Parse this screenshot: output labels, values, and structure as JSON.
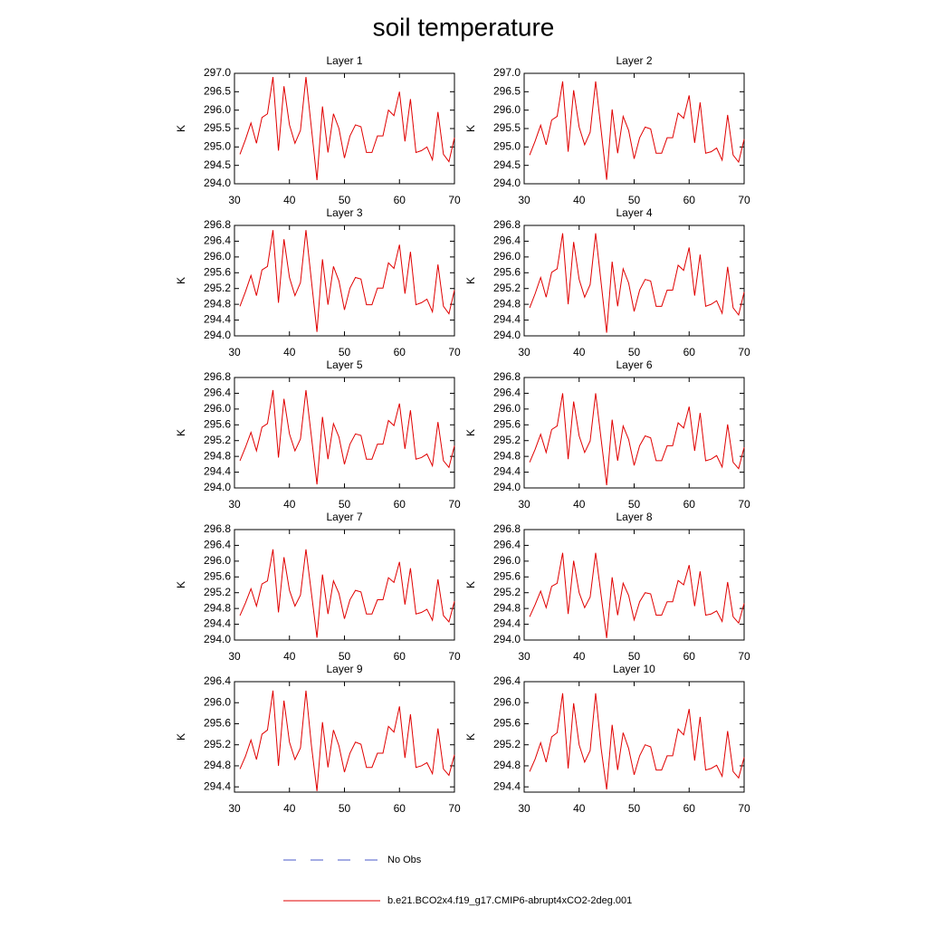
{
  "title": "soil temperature",
  "legend": [
    {
      "name": "No Obs",
      "color": "#4a5ac8",
      "style": "dashed"
    }
  ],
  "chart_data": [
    {
      "type": "line",
      "title": "Layer 1",
      "ylabel": "K",
      "x": [
        31,
        32,
        33,
        34,
        35,
        36,
        37,
        38,
        39,
        40,
        41,
        42,
        43,
        44,
        45,
        46,
        47,
        48,
        49,
        50,
        51,
        52,
        53,
        54,
        55,
        56,
        57,
        58,
        59,
        60,
        61,
        62,
        63,
        64,
        65,
        66,
        67,
        68,
        69,
        70
      ],
      "xlim": [
        30,
        70
      ],
      "xticks": [
        30,
        40,
        50,
        60,
        70
      ],
      "ylim": [
        294,
        297
      ],
      "yticks": [
        {
          "value": 294,
          "label": "294.0"
        },
        294.5,
        {
          "value": 295,
          "label": "295.0"
        },
        295.5,
        {
          "value": 296,
          "label": "296.0"
        },
        296.5,
        {
          "value": 297,
          "label": "297.0"
        }
      ],
      "series": [
        {
          "name": "b.e21.BCO2x4.f19_g17.CMIP6-abrupt4xCO2-2deg.001",
          "color": "#e00000",
          "values": [
            294.8,
            295.2,
            295.65,
            295.1,
            295.8,
            295.9,
            296.9,
            294.9,
            296.65,
            295.6,
            295.1,
            295.45,
            296.9,
            295.5,
            294.1,
            296.1,
            294.85,
            295.9,
            295.5,
            294.7,
            295.3,
            295.6,
            295.55,
            294.85,
            294.85,
            295.3,
            295.3,
            296.0,
            295.85,
            296.5,
            295.15,
            296.3,
            294.85,
            294.9,
            295.0,
            294.65,
            295.95,
            294.8,
            294.6,
            295.25
          ]
        }
      ]
    },
    {
      "type": "line",
      "title": "Layer 2",
      "ylabel": "K",
      "x": [
        31,
        32,
        33,
        34,
        35,
        36,
        37,
        38,
        39,
        40,
        41,
        42,
        43,
        44,
        45,
        46,
        47,
        48,
        49,
        50,
        51,
        52,
        53,
        54,
        55,
        56,
        57,
        58,
        59,
        60,
        61,
        62,
        63,
        64,
        65,
        66,
        67,
        68,
        69,
        70
      ],
      "xlim": [
        30,
        70
      ],
      "xticks": [
        30,
        40,
        50,
        60,
        70
      ],
      "ylim": [
        294,
        297
      ],
      "yticks": [
        {
          "value": 294,
          "label": "294.0"
        },
        294.5,
        {
          "value": 295,
          "label": "295.0"
        },
        295.5,
        {
          "value": 296,
          "label": "296.0"
        },
        296.5,
        {
          "value": 297,
          "label": "297.0"
        }
      ],
      "series": [
        {
          "color": "#e00000",
          "values": [
            294.78,
            295.16,
            295.59,
            295.06,
            295.73,
            295.83,
            296.78,
            294.87,
            296.54,
            295.54,
            295.06,
            295.4,
            296.78,
            295.45,
            294.11,
            296.02,
            294.83,
            295.83,
            295.45,
            294.68,
            295.25,
            295.54,
            295.49,
            294.83,
            294.83,
            295.25,
            295.25,
            295.92,
            295.78,
            296.4,
            295.11,
            296.21,
            294.83,
            294.87,
            294.97,
            294.64,
            295.87,
            294.78,
            294.59,
            295.21
          ]
        }
      ]
    },
    {
      "type": "line",
      "title": "Layer 3",
      "ylabel": "K",
      "x": [
        31,
        32,
        33,
        34,
        35,
        36,
        37,
        38,
        39,
        40,
        41,
        42,
        43,
        44,
        45,
        46,
        47,
        48,
        49,
        50,
        51,
        52,
        53,
        54,
        55,
        56,
        57,
        58,
        59,
        60,
        61,
        62,
        63,
        64,
        65,
        66,
        67,
        68,
        69,
        70
      ],
      "xlim": [
        30,
        70
      ],
      "xticks": [
        30,
        40,
        50,
        60,
        70
      ],
      "ylim": [
        294,
        296.8
      ],
      "yticks": [
        {
          "value": 294,
          "label": "294.0"
        },
        294.4,
        294.8,
        295.2,
        295.6,
        {
          "value": 296,
          "label": "296.0"
        },
        296.4,
        296.8
      ],
      "series": [
        {
          "color": "#e00000",
          "values": [
            294.75,
            295.12,
            295.53,
            295.02,
            295.67,
            295.76,
            296.68,
            294.84,
            296.45,
            295.48,
            295.02,
            295.35,
            296.68,
            295.39,
            294.1,
            295.94,
            294.79,
            295.76,
            295.39,
            294.66,
            295.21,
            295.48,
            295.44,
            294.79,
            294.79,
            295.21,
            295.21,
            295.85,
            295.71,
            296.31,
            295.07,
            296.13,
            294.79,
            294.84,
            294.93,
            294.61,
            295.81,
            294.75,
            294.56,
            295.16
          ]
        }
      ]
    },
    {
      "type": "line",
      "title": "Layer 4",
      "ylabel": "K",
      "x": [
        31,
        32,
        33,
        34,
        35,
        36,
        37,
        38,
        39,
        40,
        41,
        42,
        43,
        44,
        45,
        46,
        47,
        48,
        49,
        50,
        51,
        52,
        53,
        54,
        55,
        56,
        57,
        58,
        59,
        60,
        61,
        62,
        63,
        64,
        65,
        66,
        67,
        68,
        69,
        70
      ],
      "xlim": [
        30,
        70
      ],
      "xticks": [
        30,
        40,
        50,
        60,
        70
      ],
      "ylim": [
        294,
        296.8
      ],
      "yticks": [
        {
          "value": 294,
          "label": "294.0"
        },
        294.4,
        294.8,
        295.2,
        295.6,
        {
          "value": 296,
          "label": "296.0"
        },
        296.4,
        296.8
      ],
      "series": [
        {
          "color": "#e00000",
          "values": [
            294.71,
            295.07,
            295.48,
            294.98,
            295.61,
            295.7,
            296.6,
            294.8,
            296.38,
            295.43,
            294.98,
            295.3,
            296.6,
            295.34,
            294.08,
            295.88,
            294.75,
            295.7,
            295.34,
            294.62,
            295.16,
            295.43,
            295.39,
            294.75,
            294.75,
            295.16,
            295.16,
            295.79,
            295.66,
            296.24,
            295.02,
            296.06,
            294.75,
            294.8,
            294.89,
            294.57,
            295.75,
            294.71,
            294.53,
            295.11
          ]
        }
      ]
    },
    {
      "type": "line",
      "title": "Layer 5",
      "ylabel": "K",
      "x": [
        31,
        32,
        33,
        34,
        35,
        36,
        37,
        38,
        39,
        40,
        41,
        42,
        43,
        44,
        45,
        46,
        47,
        48,
        49,
        50,
        51,
        52,
        53,
        54,
        55,
        56,
        57,
        58,
        59,
        60,
        61,
        62,
        63,
        64,
        65,
        66,
        67,
        68,
        69,
        70
      ],
      "xlim": [
        30,
        70
      ],
      "xticks": [
        30,
        40,
        50,
        60,
        70
      ],
      "ylim": [
        294,
        296.8
      ],
      "yticks": [
        {
          "value": 294,
          "label": "294.0"
        },
        294.4,
        294.8,
        295.2,
        295.6,
        {
          "value": 296,
          "label": "296.0"
        },
        296.4,
        296.8
      ],
      "series": [
        {
          "color": "#e00000",
          "values": [
            294.69,
            295.03,
            295.41,
            294.94,
            295.54,
            295.63,
            296.48,
            294.77,
            296.26,
            295.37,
            294.94,
            295.24,
            296.48,
            295.29,
            294.09,
            295.8,
            294.73,
            295.63,
            295.29,
            294.6,
            295.11,
            295.37,
            295.33,
            294.73,
            294.73,
            295.11,
            295.11,
            295.71,
            295.58,
            296.14,
            294.99,
            295.97,
            294.73,
            294.77,
            294.86,
            294.56,
            295.67,
            294.69,
            294.52,
            295.07
          ]
        }
      ]
    },
    {
      "type": "line",
      "title": "Layer 6",
      "ylabel": "K",
      "x": [
        31,
        32,
        33,
        34,
        35,
        36,
        37,
        38,
        39,
        40,
        41,
        42,
        43,
        44,
        45,
        46,
        47,
        48,
        49,
        50,
        51,
        52,
        53,
        54,
        55,
        56,
        57,
        58,
        59,
        60,
        61,
        62,
        63,
        64,
        65,
        66,
        67,
        68,
        69,
        70
      ],
      "xlim": [
        30,
        70
      ],
      "xticks": [
        30,
        40,
        50,
        60,
        70
      ],
      "ylim": [
        294,
        296.8
      ],
      "yticks": [
        {
          "value": 294,
          "label": "294.0"
        },
        294.4,
        294.8,
        295.2,
        295.6,
        {
          "value": 296,
          "label": "296.0"
        },
        296.4,
        296.8
      ],
      "series": [
        {
          "color": "#e00000",
          "values": [
            294.65,
            294.98,
            295.36,
            294.9,
            295.48,
            295.57,
            296.4,
            294.73,
            296.19,
            295.32,
            294.9,
            295.19,
            296.4,
            295.23,
            294.07,
            295.73,
            294.69,
            295.57,
            295.23,
            294.57,
            295.07,
            295.32,
            295.27,
            294.69,
            294.69,
            295.07,
            295.07,
            295.65,
            295.52,
            296.06,
            294.94,
            295.9,
            294.69,
            294.73,
            294.82,
            294.53,
            295.61,
            294.65,
            294.49,
            295.03
          ]
        }
      ]
    },
    {
      "type": "line",
      "title": "Layer 7",
      "ylabel": "K",
      "x": [
        31,
        32,
        33,
        34,
        35,
        36,
        37,
        38,
        39,
        40,
        41,
        42,
        43,
        44,
        45,
        46,
        47,
        48,
        49,
        50,
        51,
        52,
        53,
        54,
        55,
        56,
        57,
        58,
        59,
        60,
        61,
        62,
        63,
        64,
        65,
        66,
        67,
        68,
        69,
        70
      ],
      "xlim": [
        30,
        70
      ],
      "xticks": [
        30,
        40,
        50,
        60,
        70
      ],
      "ylim": [
        294,
        296.8
      ],
      "yticks": [
        {
          "value": 294,
          "label": "294.0"
        },
        294.4,
        294.8,
        295.2,
        295.6,
        {
          "value": 296,
          "label": "296.0"
        },
        296.4,
        296.8
      ],
      "series": [
        {
          "color": "#e00000",
          "values": [
            294.62,
            294.94,
            295.3,
            294.86,
            295.42,
            295.5,
            296.3,
            294.7,
            296.1,
            295.26,
            294.86,
            295.14,
            296.3,
            295.18,
            294.06,
            295.66,
            294.66,
            295.5,
            295.18,
            294.54,
            295.02,
            295.26,
            295.22,
            294.66,
            294.66,
            295.02,
            295.02,
            295.58,
            295.46,
            295.98,
            294.9,
            295.82,
            294.66,
            294.7,
            294.78,
            294.5,
            295.54,
            294.62,
            294.46,
            294.98
          ]
        }
      ]
    },
    {
      "type": "line",
      "title": "Layer 8",
      "ylabel": "K",
      "x": [
        31,
        32,
        33,
        34,
        35,
        36,
        37,
        38,
        39,
        40,
        41,
        42,
        43,
        44,
        45,
        46,
        47,
        48,
        49,
        50,
        51,
        52,
        53,
        54,
        55,
        56,
        57,
        58,
        59,
        60,
        61,
        62,
        63,
        64,
        65,
        66,
        67,
        68,
        69,
        70
      ],
      "xlim": [
        30,
        70
      ],
      "xticks": [
        30,
        40,
        50,
        60,
        70
      ],
      "ylim": [
        294,
        296.8
      ],
      "yticks": [
        {
          "value": 294,
          "label": "294.0"
        },
        294.4,
        294.8,
        295.2,
        295.6,
        {
          "value": 296,
          "label": "296.0"
        },
        296.4,
        296.8
      ],
      "series": [
        {
          "color": "#e00000",
          "values": [
            294.59,
            294.9,
            295.24,
            294.82,
            295.36,
            295.44,
            296.21,
            294.66,
            296.01,
            295.2,
            294.82,
            295.09,
            296.21,
            295.13,
            294.05,
            295.59,
            294.63,
            295.44,
            295.13,
            294.51,
            294.97,
            295.2,
            295.17,
            294.63,
            294.63,
            294.97,
            294.97,
            295.51,
            295.4,
            295.9,
            294.86,
            295.74,
            294.63,
            294.66,
            294.74,
            294.47,
            295.47,
            294.59,
            294.43,
            294.93
          ]
        }
      ]
    },
    {
      "type": "line",
      "title": "Layer 9",
      "ylabel": "K",
      "x": [
        31,
        32,
        33,
        34,
        35,
        36,
        37,
        38,
        39,
        40,
        41,
        42,
        43,
        44,
        45,
        46,
        47,
        48,
        49,
        50,
        51,
        52,
        53,
        54,
        55,
        56,
        57,
        58,
        59,
        60,
        61,
        62,
        63,
        64,
        65,
        66,
        67,
        68,
        69,
        70
      ],
      "xlim": [
        30,
        70
      ],
      "xticks": [
        30,
        40,
        50,
        60,
        70
      ],
      "ylim": [
        294.3,
        296.4
      ],
      "yticks": [
        294.4,
        294.8,
        295.2,
        295.6,
        {
          "value": 296,
          "label": "296.0"
        },
        296.4
      ],
      "series": [
        {
          "color": "#e00000",
          "values": [
            294.74,
            294.98,
            295.29,
            294.92,
            295.4,
            295.48,
            296.23,
            294.8,
            296.04,
            295.25,
            294.92,
            295.14,
            296.23,
            295.18,
            294.32,
            295.63,
            294.77,
            295.48,
            295.18,
            294.68,
            295.04,
            295.25,
            295.21,
            294.77,
            294.77,
            295.04,
            295.04,
            295.55,
            295.44,
            295.93,
            294.95,
            295.78,
            294.77,
            294.8,
            294.86,
            294.65,
            295.51,
            294.74,
            294.62,
            295.01
          ]
        }
      ]
    },
    {
      "type": "line",
      "title": "Layer 10",
      "ylabel": "K",
      "x": [
        31,
        32,
        33,
        34,
        35,
        36,
        37,
        38,
        39,
        40,
        41,
        42,
        43,
        44,
        45,
        46,
        47,
        48,
        49,
        50,
        51,
        52,
        53,
        54,
        55,
        56,
        57,
        58,
        59,
        60,
        61,
        62,
        63,
        64,
        65,
        66,
        67,
        68,
        69,
        70
      ],
      "xlim": [
        30,
        70
      ],
      "xticks": [
        30,
        40,
        50,
        60,
        70
      ],
      "ylim": [
        294.3,
        296.4
      ],
      "yticks": [
        294.4,
        294.8,
        295.2,
        295.6,
        {
          "value": 296,
          "label": "296.0"
        },
        296.4
      ],
      "series": [
        {
          "color": "#e00000",
          "values": [
            294.69,
            294.93,
            295.24,
            294.87,
            295.35,
            295.43,
            296.18,
            294.75,
            295.99,
            295.2,
            294.87,
            295.09,
            296.18,
            295.13,
            294.35,
            295.58,
            294.72,
            295.43,
            295.13,
            294.63,
            294.99,
            295.2,
            295.16,
            294.72,
            294.72,
            294.99,
            294.99,
            295.5,
            295.39,
            295.88,
            294.9,
            295.73,
            294.72,
            294.75,
            294.81,
            294.6,
            295.46,
            294.69,
            294.57,
            294.96
          ]
        }
      ]
    }
  ]
}
